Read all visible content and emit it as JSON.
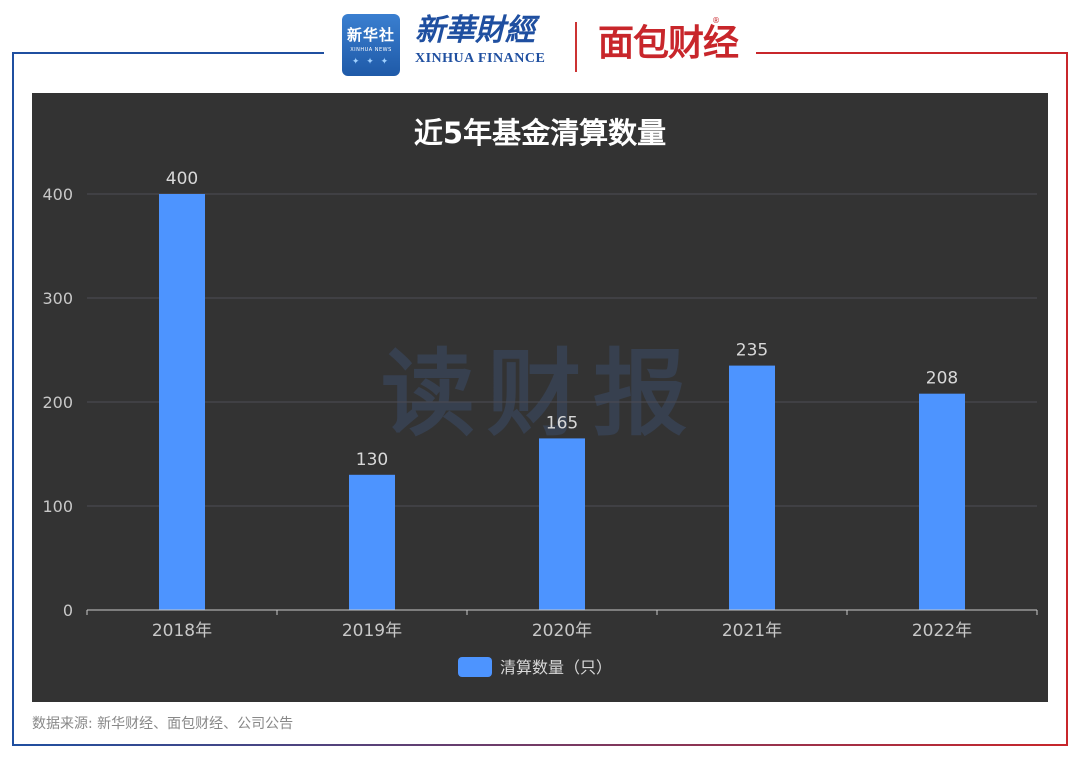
{
  "header": {
    "xinhua_logo_cn": "新华社",
    "xinhua_logo_en": "XINHUA NEWS",
    "brand_cn": "新華財經",
    "brand_en": "XINHUA FINANCE",
    "partner_brand": "面包财经",
    "registered_mark": "®"
  },
  "watermark": "读财报",
  "source": "数据来源: 新华财经、面包财经、公司公告",
  "colors": {
    "panel_bg": "#333333",
    "bar": "#4d94ff",
    "frame_left": "#1f4fa0",
    "frame_right": "#c8262b"
  },
  "chart_data": {
    "type": "bar",
    "title": "近5年基金清算数量",
    "categories": [
      "2018年",
      "2019年",
      "2020年",
      "2021年",
      "2022年"
    ],
    "series": [
      {
        "name": "清算数量（只）",
        "values": [
          400,
          130,
          165,
          235,
          208
        ]
      }
    ],
    "ylim": [
      0,
      400
    ],
    "yticks": [
      0,
      100,
      200,
      300,
      400
    ],
    "grid": true,
    "legend": "bottom-center",
    "data_labels": true
  }
}
